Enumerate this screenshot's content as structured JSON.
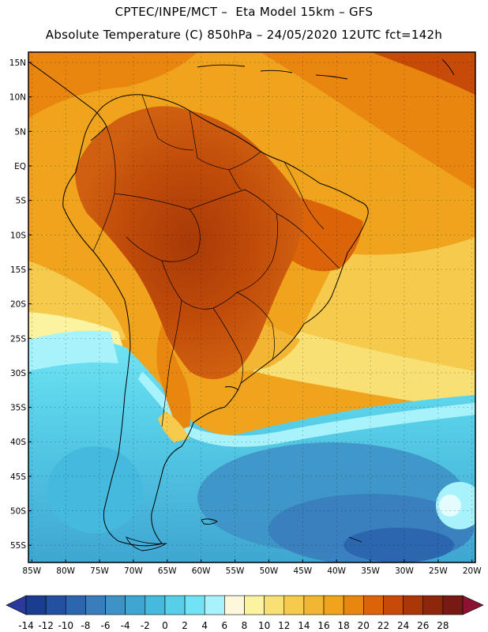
{
  "title_line1": "CPTEC/INPE/MCT –  Eta Model 15km – GFS",
  "title_line2": "Absolute Temperature (C) 850hPa – 24/05/2020 12UTC fct=142h",
  "lat_labels": [
    "15N",
    "10N",
    "5N",
    "EQ",
    "5S",
    "10S",
    "15S",
    "20S",
    "25S",
    "30S",
    "35S",
    "40S",
    "45S",
    "50S",
    "55S"
  ],
  "lat_values": [
    15,
    10,
    5,
    0,
    -5,
    -10,
    -15,
    -20,
    -25,
    -30,
    -35,
    -40,
    -45,
    -50,
    -55
  ],
  "lon_labels": [
    "85W",
    "80W",
    "75W",
    "70W",
    "65W",
    "60W",
    "55W",
    "50W",
    "45W",
    "40W",
    "35W",
    "30W",
    "25W",
    "20W"
  ],
  "lon_values": [
    -85,
    -80,
    -75,
    -70,
    -65,
    -60,
    -55,
    -50,
    -45,
    -40,
    -35,
    -30,
    -25,
    -20
  ],
  "colorbar": {
    "ticks": [
      "-14",
      "-12",
      "-10",
      "-8",
      "-6",
      "-4",
      "-2",
      "0",
      "2",
      "4",
      "6",
      "8",
      "10",
      "12",
      "14",
      "16",
      "18",
      "20",
      "22",
      "24",
      "26",
      "28"
    ],
    "colors": [
      "#1a3d8f",
      "#23509f",
      "#2c66ae",
      "#3a7dbd",
      "#3e92c6",
      "#3fa6d2",
      "#45bade",
      "#58cfe8",
      "#70e4f4",
      "#a8f3fb",
      "#fdf7dc",
      "#fbf3a0",
      "#f8e074",
      "#f5ca4d",
      "#f2b634",
      "#f0a31c",
      "#e98610",
      "#dc6408",
      "#c84a08",
      "#ab3608",
      "#8e260a",
      "#781a14"
    ],
    "under_color": "#2b3a9a",
    "over_color": "#8b1230"
  },
  "map": {
    "lon_range": [
      -85.5,
      -19.5
    ],
    "lat_range": [
      -57.5,
      16.5
    ],
    "ocean_color": "#f4a823",
    "land_color": "#c8580e"
  }
}
